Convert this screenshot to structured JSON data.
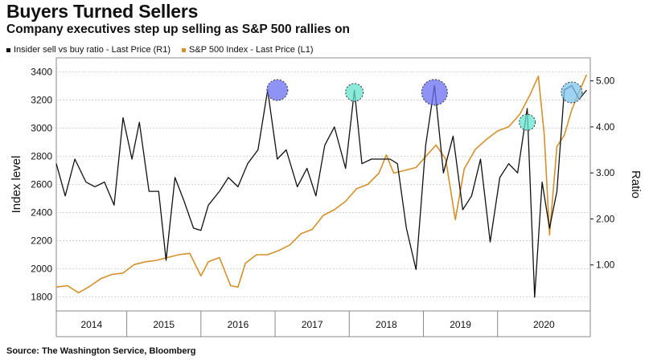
{
  "header": {
    "title": "Buyers Turned Sellers",
    "subtitle": "Company executives step up selling as S&P 500 rallies on"
  },
  "legend": [
    {
      "label": "Insider sell vs buy ratio - Last Price (R1)",
      "color": "#111111"
    },
    {
      "label": "S&P 500 Index - Last Price (L1)",
      "color": "#d4902a"
    }
  ],
  "source": "Source: The Washington Service, Bloomberg",
  "chart_data": {
    "type": "line",
    "title": "Buyers Turned Sellers",
    "subtitle": "Company executives step up selling as S&P 500 rallies on",
    "ylabel_left": "Index level",
    "ylabel_right": "Ratio",
    "ylim_left": [
      1700,
      3500
    ],
    "ylim_right": [
      0,
      5.5
    ],
    "xlim": [
      2013.6,
      2020.8
    ],
    "left_ticks": [
      "1800",
      "2000",
      "2200",
      "2400",
      "2600",
      "2800",
      "3000",
      "3200",
      "3400"
    ],
    "right_ticks": [
      "1.00",
      "2.00",
      "3.00",
      "4.00",
      "5.00"
    ],
    "x_labels": [
      "2014",
      "2015",
      "2016",
      "2017",
      "2018",
      "2019",
      "2020"
    ],
    "x_dividers": [
      2014.55,
      2015.55,
      2016.55,
      2017.55,
      2018.55,
      2019.55
    ],
    "colors": {
      "ratio": "#111111",
      "sp500": "#d4902a",
      "grid": "#c8c8c8"
    },
    "series": [
      {
        "name": "Insider sell vs buy ratio - Last Price (R1)",
        "axis": "right",
        "x": [
          2013.6,
          2013.72,
          2013.85,
          2014.0,
          2014.12,
          2014.25,
          2014.38,
          2014.5,
          2014.62,
          2014.72,
          2014.85,
          2014.98,
          2015.08,
          2015.2,
          2015.32,
          2015.45,
          2015.55,
          2015.65,
          2015.8,
          2015.92,
          2016.05,
          2016.18,
          2016.32,
          2016.45,
          2016.58,
          2016.7,
          2016.85,
          2016.98,
          2017.1,
          2017.22,
          2017.35,
          2017.5,
          2017.62,
          2017.72,
          2017.85,
          2017.98,
          2018.1,
          2018.2,
          2018.32,
          2018.45,
          2018.58,
          2018.7,
          2018.82,
          2018.95,
          2019.08,
          2019.2,
          2019.32,
          2019.45,
          2019.58,
          2019.7,
          2019.82,
          2019.95,
          2020.05,
          2020.15,
          2020.25,
          2020.35,
          2020.45,
          2020.55,
          2020.65,
          2020.75
        ],
        "values": [
          3.2,
          2.5,
          3.3,
          2.8,
          2.7,
          2.8,
          2.3,
          4.2,
          3.3,
          4.1,
          2.6,
          2.6,
          1.1,
          2.9,
          2.4,
          1.8,
          1.75,
          2.3,
          2.6,
          2.9,
          2.7,
          3.2,
          3.5,
          4.8,
          3.3,
          3.5,
          2.7,
          3.1,
          2.5,
          3.6,
          4.0,
          3.1,
          4.8,
          3.2,
          3.3,
          3.3,
          3.3,
          3.2,
          1.8,
          0.9,
          3.6,
          4.9,
          3.0,
          3.8,
          2.2,
          2.5,
          3.3,
          1.5,
          2.9,
          3.2,
          3.0,
          4.4,
          0.3,
          2.8,
          1.8,
          2.6,
          4.8,
          4.9,
          4.6,
          4.8
        ],
        "values_note": ""
      },
      {
        "name": "S&P 500 Index - Last Price (L1)",
        "axis": "left",
        "x": [
          2013.6,
          2013.75,
          2013.9,
          2014.05,
          2014.2,
          2014.35,
          2014.5,
          2014.65,
          2014.8,
          2014.95,
          2015.1,
          2015.25,
          2015.4,
          2015.55,
          2015.65,
          2015.8,
          2015.95,
          2016.05,
          2016.15,
          2016.3,
          2016.45,
          2016.6,
          2016.75,
          2016.9,
          2017.05,
          2017.2,
          2017.35,
          2017.5,
          2017.65,
          2017.8,
          2017.95,
          2018.05,
          2018.15,
          2018.3,
          2018.45,
          2018.6,
          2018.72,
          2018.85,
          2018.98,
          2019.1,
          2019.25,
          2019.4,
          2019.55,
          2019.7,
          2019.85,
          2019.98,
          2020.1,
          2020.18,
          2020.25,
          2020.35,
          2020.45,
          2020.55,
          2020.65,
          2020.75
        ],
        "values": [
          1870,
          1880,
          1830,
          1875,
          1930,
          1960,
          1970,
          2030,
          2050,
          2060,
          2080,
          2100,
          2110,
          1950,
          2050,
          2080,
          1880,
          1870,
          2040,
          2100,
          2100,
          2130,
          2170,
          2250,
          2280,
          2380,
          2420,
          2480,
          2570,
          2600,
          2680,
          2810,
          2680,
          2700,
          2720,
          2810,
          2880,
          2780,
          2350,
          2710,
          2850,
          2920,
          2980,
          3010,
          3100,
          3230,
          3370,
          2950,
          2240,
          2870,
          2950,
          3130,
          3260,
          3380
        ],
        "values_note": ""
      }
    ],
    "highlights": [
      {
        "x": 2016.58,
        "ratio": 4.8,
        "color": "#6a6ff2",
        "r": 13
      },
      {
        "x": 2017.62,
        "ratio": 4.75,
        "color": "#66e3cf",
        "r": 11
      },
      {
        "x": 2018.7,
        "ratio": 4.75,
        "color": "#6a6ff2",
        "r": 16
      },
      {
        "x": 2019.95,
        "ratio": 4.1,
        "color": "#66e3cf",
        "r": 10
      },
      {
        "x": 2020.55,
        "ratio": 4.75,
        "color": "#7fc4ee",
        "r": 13
      }
    ],
    "grid": "horizontal dashed",
    "legend_position": "top-left"
  }
}
